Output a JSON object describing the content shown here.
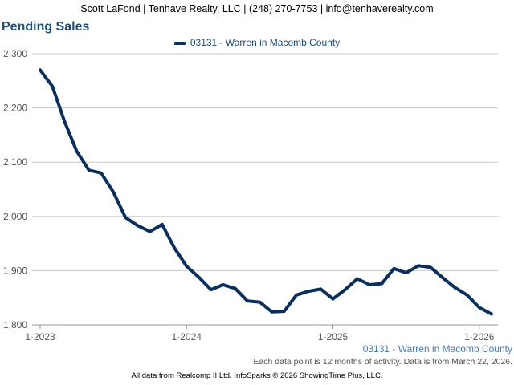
{
  "header": {
    "contact": "Scott LaFond | Tenhave Realty, LLC | (248) 270-7753 | info@tenhaverealty.com"
  },
  "chart_data": {
    "type": "line",
    "title": "Pending Sales",
    "xlabel": "",
    "ylabel": "",
    "ylim": [
      1800,
      2300
    ],
    "yticks": [
      1800,
      1900,
      2000,
      2100,
      2200,
      2300
    ],
    "ytick_labels": [
      "1,800",
      "1,900",
      "2,000",
      "2,100",
      "2,200",
      "2,300"
    ],
    "xticks": [
      {
        "label": "1-2023",
        "index": 0
      },
      {
        "label": "1-2024",
        "index": 12
      },
      {
        "label": "1-2025",
        "index": 24
      },
      {
        "label": "1-2026",
        "index": 36
      }
    ],
    "grid": true,
    "legend": "top-center",
    "series": [
      {
        "name": "03131 - Warren in Macomb County",
        "color": "#0b2f5c",
        "values": [
          2270,
          2240,
          2175,
          2120,
          2085,
          2080,
          2045,
          1998,
          1983,
          1972,
          1985,
          1942,
          1908,
          1888,
          1865,
          1874,
          1867,
          1844,
          1842,
          1824,
          1825,
          1855,
          1862,
          1866,
          1848,
          1865,
          1885,
          1874,
          1876,
          1904,
          1896,
          1909,
          1906,
          1887,
          1869,
          1855,
          1832,
          1820
        ]
      }
    ]
  },
  "series_label": "03131 - Warren in Macomb County",
  "note": "Each data point is 12 months of activity. Data is from March 22, 2026.",
  "footer": "All data from Realcomp II Ltd. InfoSparks © 2026 ShowingTime Plus, LLC."
}
